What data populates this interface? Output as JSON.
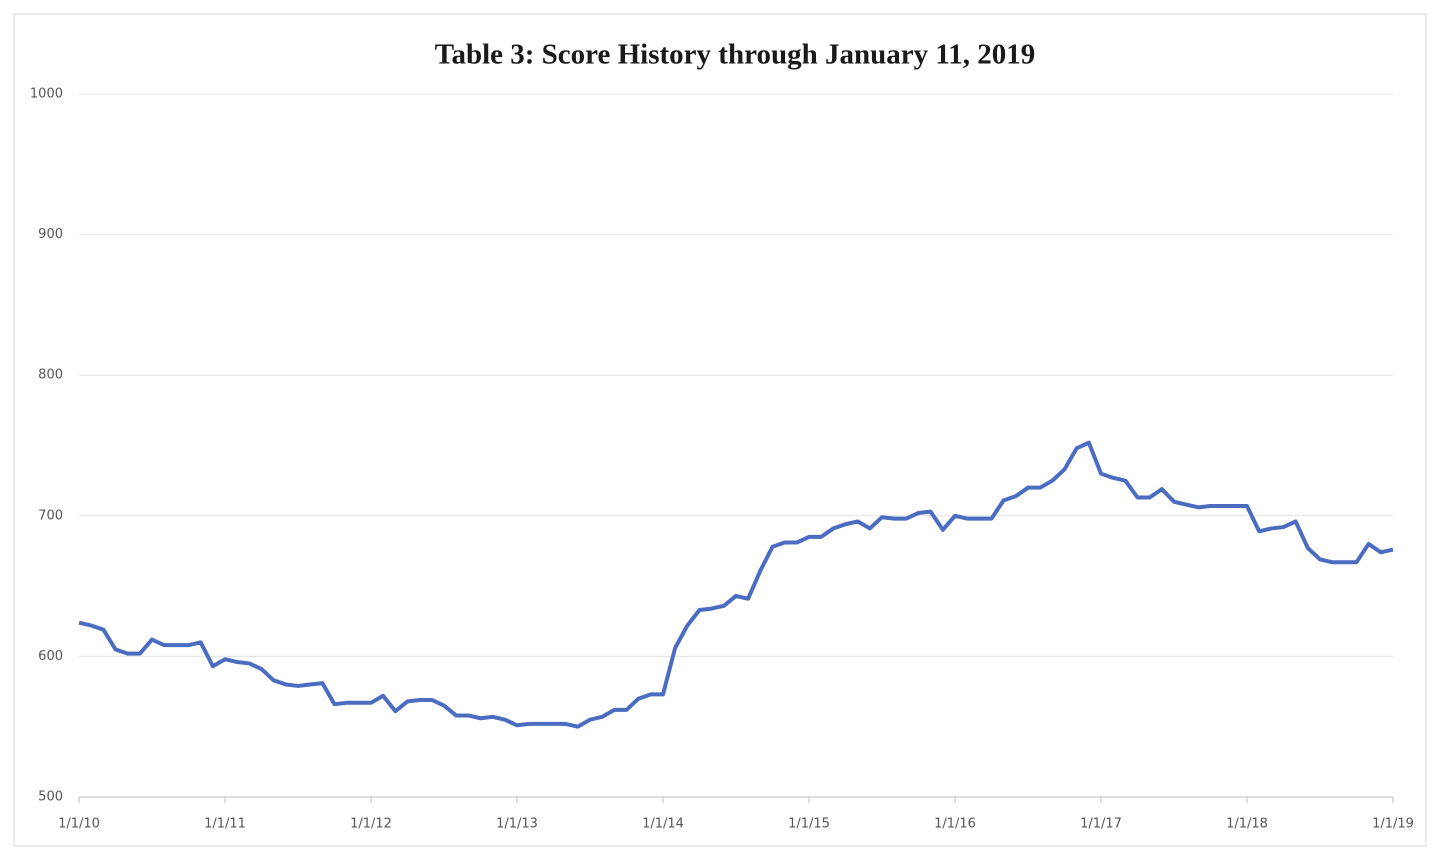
{
  "chart_data": {
    "type": "line",
    "title": "Table 3: Score History through January 11, 2019",
    "x": [
      2010,
      2010.083,
      2010.167,
      2010.25,
      2010.333,
      2010.417,
      2010.5,
      2010.583,
      2010.667,
      2010.75,
      2010.833,
      2010.917,
      2011,
      2011.083,
      2011.167,
      2011.25,
      2011.333,
      2011.417,
      2011.5,
      2011.583,
      2011.667,
      2011.75,
      2011.833,
      2011.917,
      2012,
      2012.083,
      2012.167,
      2012.25,
      2012.333,
      2012.417,
      2012.5,
      2012.583,
      2012.667,
      2012.75,
      2012.833,
      2012.917,
      2013,
      2013.083,
      2013.167,
      2013.25,
      2013.333,
      2013.417,
      2013.5,
      2013.583,
      2013.667,
      2013.75,
      2013.833,
      2013.917,
      2014,
      2014.083,
      2014.167,
      2014.25,
      2014.333,
      2014.417,
      2014.5,
      2014.583,
      2014.667,
      2014.75,
      2014.833,
      2014.917,
      2015,
      2015.083,
      2015.167,
      2015.25,
      2015.333,
      2015.417,
      2015.5,
      2015.583,
      2015.667,
      2015.75,
      2015.833,
      2015.917,
      2016,
      2016.083,
      2016.167,
      2016.25,
      2016.333,
      2016.417,
      2016.5,
      2016.583,
      2016.667,
      2016.75,
      2016.833,
      2016.917,
      2017,
      2017.083,
      2017.167,
      2017.25,
      2017.333,
      2017.417,
      2017.5,
      2017.583,
      2017.667,
      2017.75,
      2017.833,
      2017.917,
      2018,
      2018.083,
      2018.167,
      2018.25,
      2018.333,
      2018.417,
      2018.5,
      2018.583,
      2018.667,
      2018.75,
      2018.833,
      2018.917,
      2019
    ],
    "values": [
      624,
      622,
      619,
      605,
      602,
      602,
      612,
      608,
      608,
      608,
      610,
      593,
      598,
      596,
      595,
      591,
      583,
      580,
      579,
      580,
      581,
      566,
      567,
      567,
      567,
      572,
      561,
      568,
      569,
      569,
      565,
      558,
      558,
      556,
      557,
      555,
      551,
      552,
      552,
      552,
      552,
      550,
      555,
      557,
      562,
      562,
      570,
      573,
      573,
      606,
      622,
      633,
      634,
      636,
      643,
      641,
      661,
      678,
      681,
      681,
      685,
      685,
      691,
      694,
      696,
      691,
      699,
      698,
      698,
      702,
      703,
      690,
      700,
      698,
      698,
      698,
      711,
      714,
      720,
      720,
      725,
      733,
      748,
      752,
      730,
      727,
      725,
      713,
      713,
      719,
      710,
      708,
      706,
      707,
      707,
      707,
      707,
      689,
      691,
      692,
      696,
      677,
      669,
      667,
      667,
      667,
      680,
      674,
      676
    ],
    "color": "#4a6cc1",
    "xlim": [
      2010,
      2019
    ],
    "xticks": [
      {
        "value": 2010,
        "label": "1/1/10"
      },
      {
        "value": 2011,
        "label": "1/1/11"
      },
      {
        "value": 2012,
        "label": "1/1/12"
      },
      {
        "value": 2013,
        "label": "1/1/13"
      },
      {
        "value": 2014,
        "label": "1/1/14"
      },
      {
        "value": 2015,
        "label": "1/1/15"
      },
      {
        "value": 2016,
        "label": "1/1/16"
      },
      {
        "value": 2017,
        "label": "1/1/17"
      },
      {
        "value": 2018,
        "label": "1/1/18"
      },
      {
        "value": 2019,
        "label": "1/1/19"
      }
    ],
    "ylim": [
      500,
      1000
    ],
    "yticks": [
      500,
      600,
      700,
      800,
      900,
      1000
    ],
    "grid": true
  }
}
